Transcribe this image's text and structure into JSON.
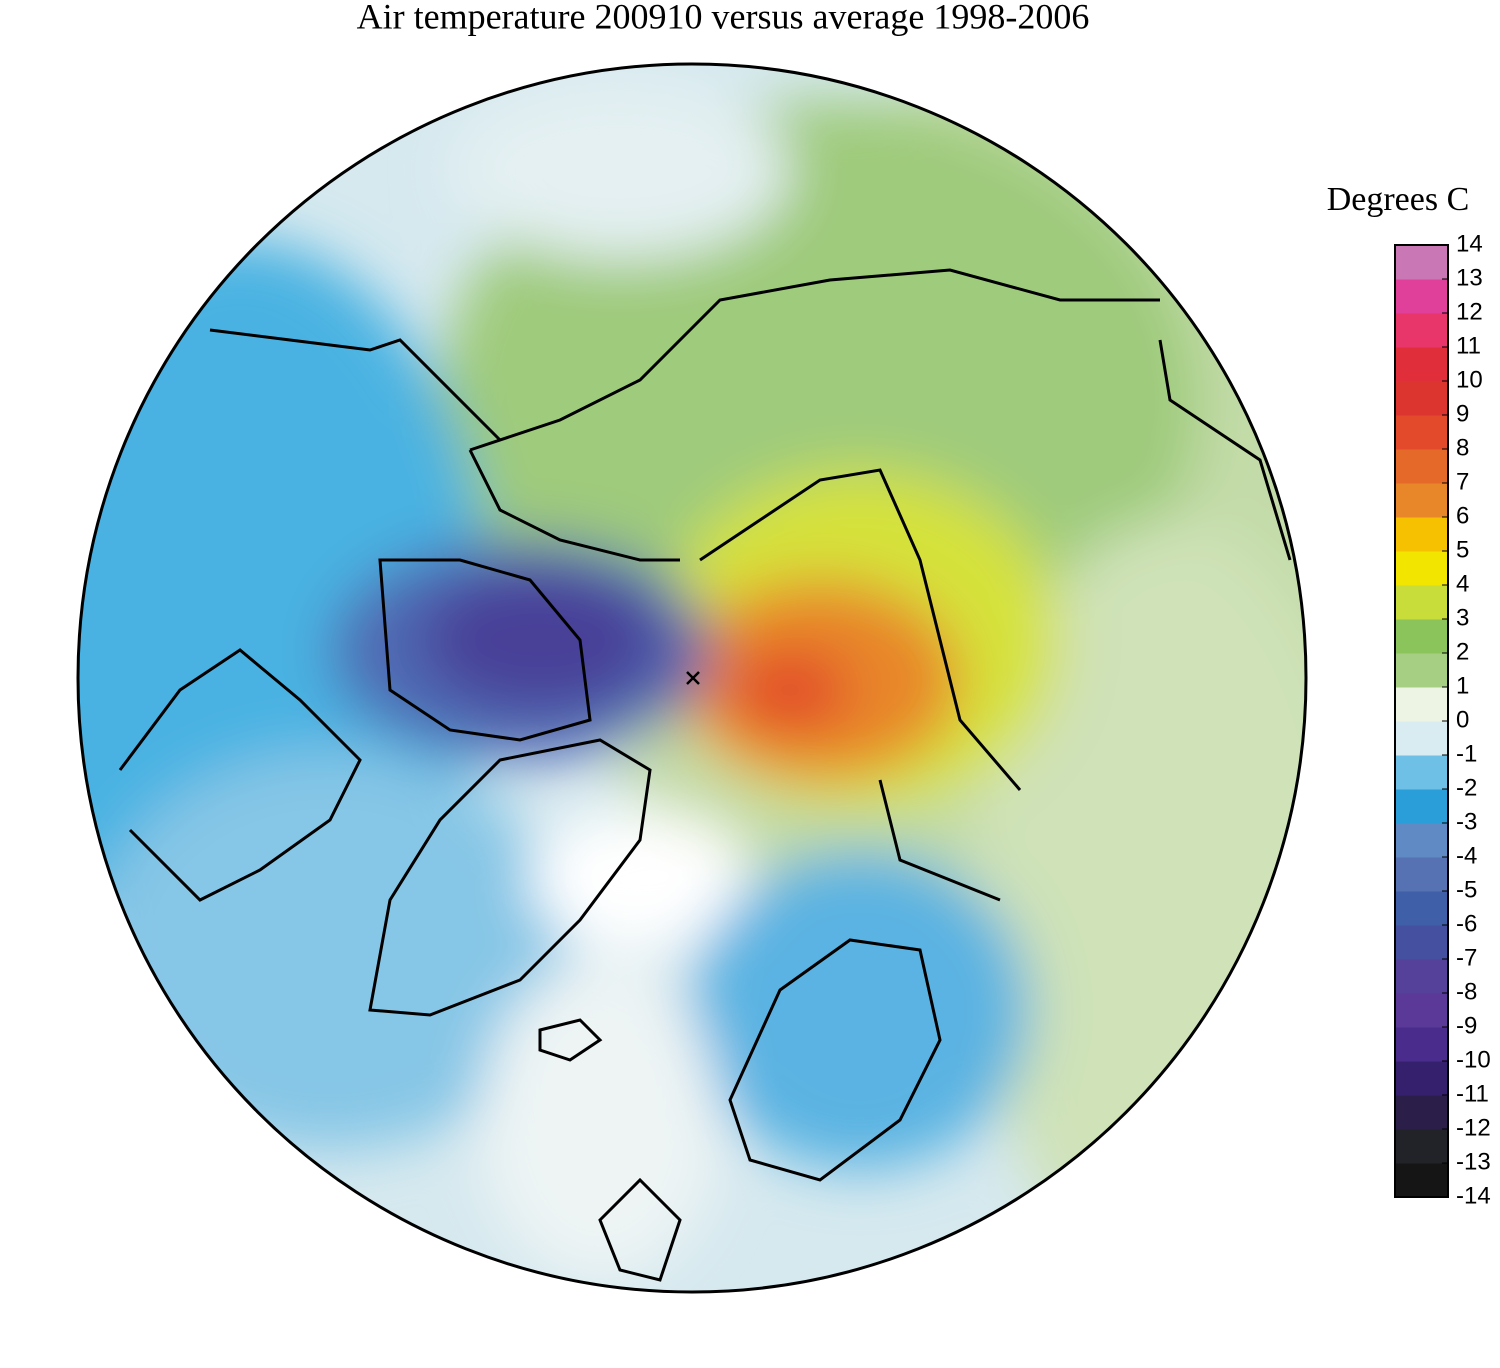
{
  "title": "Air temperature 200910 versus average 1998-2006",
  "colorbar": {
    "label": "Degrees C",
    "range": [
      -14,
      14
    ],
    "ticks": [
      14,
      13,
      12,
      11,
      10,
      9,
      8,
      7,
      6,
      5,
      4,
      3,
      2,
      1,
      0,
      -1,
      -2,
      -3,
      -4,
      -5,
      -6,
      -7,
      -8,
      -9,
      -10,
      -11,
      -12,
      -13,
      -14
    ],
    "colors": [
      "#151515",
      "#222328",
      "#2b1f4a",
      "#35206e",
      "#4a2c8c",
      "#5a3998",
      "#55409a",
      "#4550a0",
      "#3f5fa8",
      "#5672b3",
      "#5f8ac4",
      "#2a9ed9",
      "#6fc0e6",
      "#d8ecf2",
      "#eef4e4",
      "#a6cf84",
      "#8cc45c",
      "#c8dc3a",
      "#f2e600",
      "#f5c100",
      "#e8862a",
      "#e56a2a",
      "#e24a2b",
      "#dc3530",
      "#e02e3a",
      "#e8356a",
      "#e0409a",
      "#c977b5"
    ]
  }
}
